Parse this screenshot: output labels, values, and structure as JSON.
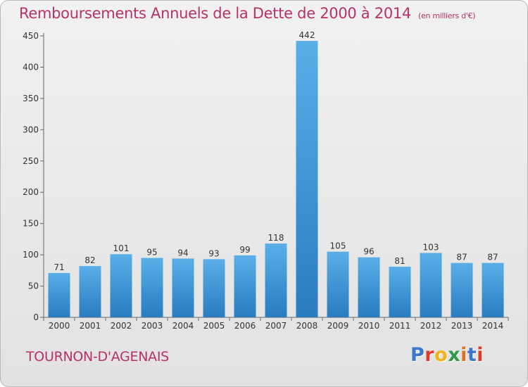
{
  "header": {
    "title": "Remboursements Annuels de la Dette de 2000 à 2014",
    "subtitle": "(en milliers d'€)"
  },
  "footer": {
    "commune": "TOURNON-D'AGENAIS",
    "logo_text": "Proxiti"
  },
  "colors": {
    "title": "#b5326b",
    "bar_top": "#5aaee8",
    "bar_bottom": "#2a7cbf",
    "logo": [
      "#3b78c9",
      "#e03a2e",
      "#f2b21b",
      "#2e9b45",
      "#e0731e",
      "#3b78c9",
      "#e03a2e"
    ]
  },
  "chart_data": {
    "type": "bar",
    "title": "Remboursements Annuels de la Dette de 2000 à 2014",
    "subtitle": "(en milliers d'€)",
    "categories": [
      "2000",
      "2001",
      "2002",
      "2003",
      "2004",
      "2005",
      "2006",
      "2007",
      "2008",
      "2009",
      "2010",
      "2011",
      "2012",
      "2013",
      "2014"
    ],
    "values": [
      71,
      82,
      101,
      95,
      94,
      93,
      99,
      118,
      442,
      105,
      96,
      81,
      103,
      87,
      87
    ],
    "yticks": [
      0,
      50,
      100,
      150,
      200,
      250,
      300,
      350,
      400,
      450
    ],
    "ylim": [
      0,
      450
    ],
    "xlabel": "",
    "ylabel": "",
    "grid": false,
    "data_labels": true
  }
}
